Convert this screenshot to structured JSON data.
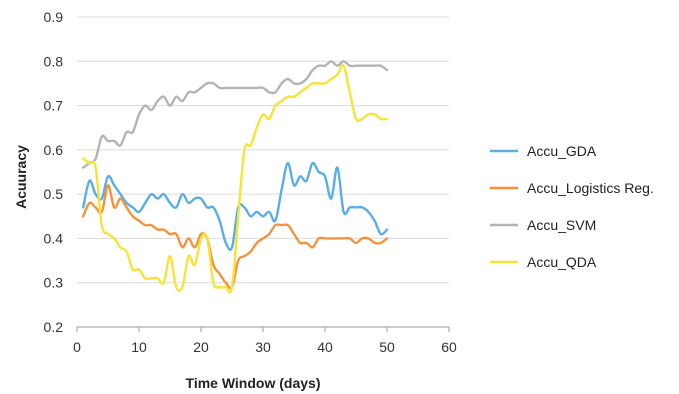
{
  "chart_data": {
    "type": "line",
    "xlabel": "Time Window (days)",
    "ylabel": "Acuuracy",
    "xlim": [
      0,
      60
    ],
    "ylim": [
      0.2,
      0.9
    ],
    "x_ticks": [
      "0",
      "10",
      "20",
      "30",
      "40",
      "50",
      "60"
    ],
    "y_ticks": [
      "0.2",
      "0.3",
      "0.4",
      "0.5",
      "0.6",
      "0.7",
      "0.8",
      "0.9"
    ],
    "grid": "horizontal",
    "legend_position": "right",
    "x": [
      1,
      2,
      3,
      4,
      5,
      6,
      7,
      8,
      9,
      10,
      11,
      12,
      13,
      14,
      15,
      16,
      17,
      18,
      19,
      20,
      21,
      22,
      23,
      24,
      25,
      26,
      27,
      28,
      29,
      30,
      31,
      32,
      33,
      34,
      35,
      36,
      37,
      38,
      39,
      40,
      41,
      42,
      43,
      44,
      45,
      46,
      47,
      48,
      49,
      50
    ],
    "series": [
      {
        "name": "Accu_GDA",
        "color": "#5aaee3",
        "values": [
          0.47,
          0.53,
          0.5,
          0.49,
          0.54,
          0.52,
          0.5,
          0.48,
          0.47,
          0.46,
          0.48,
          0.5,
          0.49,
          0.5,
          0.48,
          0.47,
          0.5,
          0.48,
          0.49,
          0.49,
          0.47,
          0.47,
          0.44,
          0.39,
          0.38,
          0.47,
          0.47,
          0.45,
          0.46,
          0.45,
          0.46,
          0.44,
          0.51,
          0.57,
          0.52,
          0.54,
          0.53,
          0.57,
          0.55,
          0.54,
          0.49,
          0.56,
          0.46,
          0.47,
          0.47,
          0.47,
          0.46,
          0.44,
          0.41,
          0.42
        ]
      },
      {
        "name": "Accu_Logistics Reg.",
        "color": "#f5923e",
        "values": [
          0.45,
          0.48,
          0.47,
          0.46,
          0.52,
          0.47,
          0.49,
          0.47,
          0.45,
          0.44,
          0.43,
          0.43,
          0.42,
          0.42,
          0.41,
          0.41,
          0.38,
          0.4,
          0.38,
          0.41,
          0.4,
          0.34,
          0.32,
          0.3,
          0.29,
          0.35,
          0.36,
          0.37,
          0.39,
          0.4,
          0.41,
          0.43,
          0.43,
          0.43,
          0.41,
          0.39,
          0.39,
          0.38,
          0.4,
          0.4,
          0.4,
          0.4,
          0.4,
          0.4,
          0.39,
          0.4,
          0.4,
          0.39,
          0.39,
          0.4
        ]
      },
      {
        "name": "Accu_SVM",
        "color": "#b4b4b4",
        "values": [
          0.56,
          0.57,
          0.58,
          0.63,
          0.62,
          0.62,
          0.61,
          0.64,
          0.64,
          0.68,
          0.7,
          0.69,
          0.71,
          0.72,
          0.7,
          0.72,
          0.71,
          0.73,
          0.73,
          0.74,
          0.75,
          0.75,
          0.74,
          0.74,
          0.74,
          0.74,
          0.74,
          0.74,
          0.74,
          0.74,
          0.73,
          0.73,
          0.75,
          0.76,
          0.75,
          0.75,
          0.76,
          0.78,
          0.79,
          0.79,
          0.8,
          0.79,
          0.8,
          0.79,
          0.79,
          0.79,
          0.79,
          0.79,
          0.79,
          0.78
        ]
      },
      {
        "name": "Accu_QDA",
        "color": "#f7e33a",
        "values": [
          0.58,
          0.57,
          0.56,
          0.43,
          0.41,
          0.4,
          0.38,
          0.37,
          0.33,
          0.33,
          0.31,
          0.31,
          0.31,
          0.3,
          0.36,
          0.29,
          0.29,
          0.36,
          0.34,
          0.4,
          0.4,
          0.3,
          0.29,
          0.29,
          0.29,
          0.45,
          0.6,
          0.61,
          0.65,
          0.68,
          0.67,
          0.7,
          0.71,
          0.72,
          0.72,
          0.73,
          0.74,
          0.75,
          0.75,
          0.75,
          0.76,
          0.77,
          0.79,
          0.73,
          0.67,
          0.67,
          0.68,
          0.68,
          0.67,
          0.67
        ]
      }
    ]
  }
}
